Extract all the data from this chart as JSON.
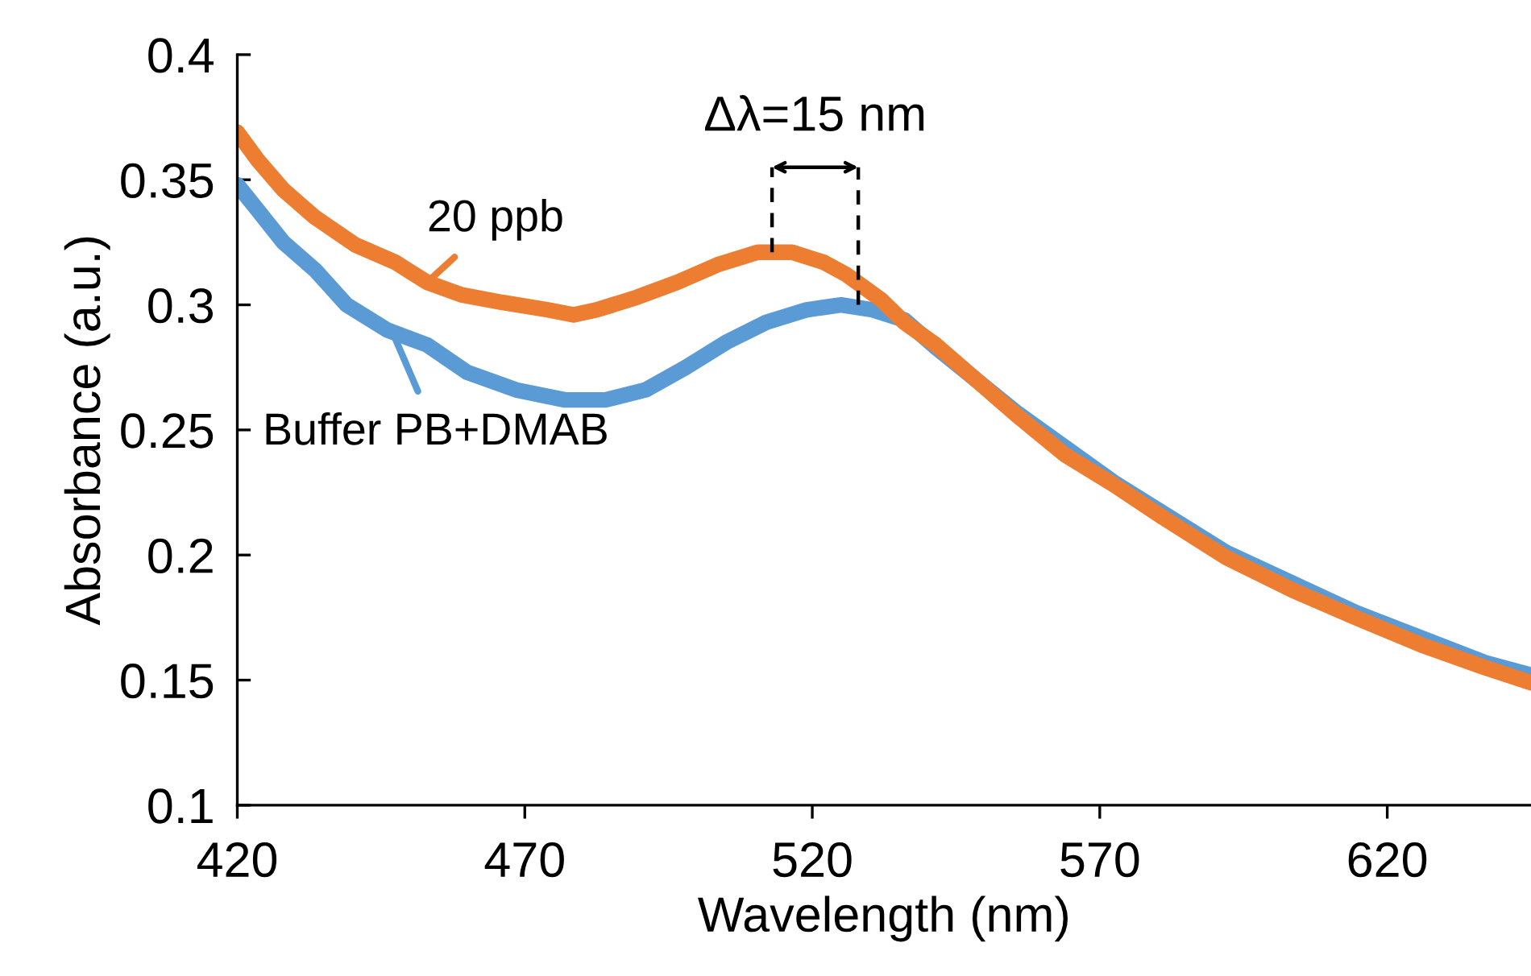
{
  "chart_data": {
    "type": "line",
    "xlabel": "Wavelength (nm)",
    "ylabel": "Absorbance (a.u.)",
    "xlim": [
      420,
      645
    ],
    "ylim": [
      0.1,
      0.4
    ],
    "xticks": [
      420,
      470,
      520,
      570,
      620
    ],
    "yticks": [
      {
        "value": 0.1,
        "label": "0.1"
      },
      {
        "value": 0.15,
        "label": "0.15"
      },
      {
        "value": 0.2,
        "label": "0.2"
      },
      {
        "value": 0.25,
        "label": "0.25"
      },
      {
        "value": 0.3,
        "label": "0.3"
      },
      {
        "value": 0.35,
        "label": "0.35"
      },
      {
        "value": 0.4,
        "label": "0.4"
      }
    ],
    "grid": false,
    "legend": false,
    "marker": "none",
    "series": [
      {
        "color": "#5b9bd5",
        "line_style": "solid",
        "x": [
          420,
          423.5,
          428,
          433.5,
          439,
          446,
          453,
          460,
          468.5,
          477,
          484,
          491,
          498,
          505,
          512,
          519,
          525,
          530.5,
          536,
          541.5,
          555.5,
          572.5,
          592,
          614.5,
          637,
          645
        ],
        "values": [
          0.348,
          0.338,
          0.325,
          0.314,
          0.3,
          0.29,
          0.284,
          0.273,
          0.266,
          0.262,
          0.262,
          0.266,
          0.275,
          0.285,
          0.293,
          0.298,
          0.3,
          0.298,
          0.294,
          0.283,
          0.257,
          0.229,
          0.201,
          0.177,
          0.157,
          0.152
        ]
      },
      {
        "color": "#ed7d31",
        "line_style": "solid",
        "x": [
          420,
          423.5,
          428,
          433.5,
          440.5,
          447.5,
          453,
          459,
          466,
          474,
          478.5,
          482.5,
          489.5,
          496.5,
          503.5,
          510.5,
          516.5,
          522,
          526,
          532,
          536,
          541.5,
          547,
          555.5,
          564,
          572.5,
          581,
          592,
          603.5,
          614.5,
          626,
          637,
          645
        ],
        "values": [
          0.369,
          0.358,
          0.346,
          0.335,
          0.324,
          0.317,
          0.309,
          0.304,
          0.301,
          0.298,
          0.296,
          0.298,
          0.303,
          0.309,
          0.316,
          0.321,
          0.321,
          0.317,
          0.312,
          0.302,
          0.293,
          0.284,
          0.273,
          0.256,
          0.24,
          0.228,
          0.215,
          0.199,
          0.186,
          0.175,
          0.164,
          0.155,
          0.149
        ]
      },
      {
        "color": "#000000",
        "line_style": "dashed",
        "x": [
          513,
          513
        ],
        "values": [
          0.321,
          0.355
        ]
      },
      {
        "color": "#000000",
        "line_style": "dashed",
        "x": [
          528,
          528
        ],
        "values": [
          0.3,
          0.355
        ]
      }
    ],
    "annotations": [
      {
        "text": "20 ppb",
        "x": 453,
        "y": 0.309
      },
      {
        "text": "Buffer PB+DMAB",
        "x": 447,
        "y": 0.289
      },
      "Δλ=15 nm"
    ]
  }
}
